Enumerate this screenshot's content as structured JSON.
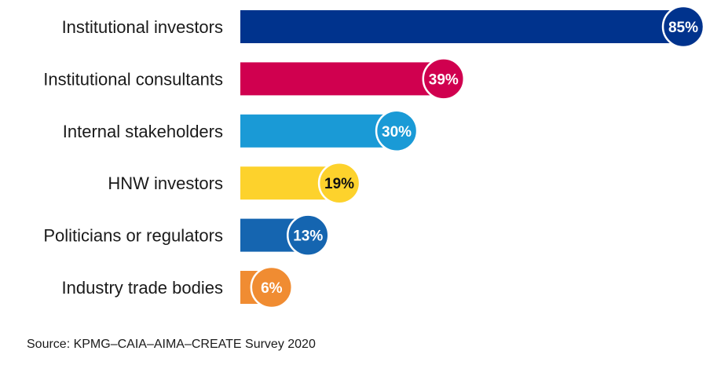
{
  "chart_data": {
    "type": "bar",
    "orientation": "horizontal",
    "categories": [
      "Institutional investors",
      "Institutional consultants",
      "Internal stakeholders",
      "HNW investors",
      "Politicians or regulators",
      "Industry trade bodies"
    ],
    "values": [
      85,
      39,
      30,
      19,
      13,
      6
    ],
    "value_labels": [
      "85%",
      "39%",
      "30%",
      "19%",
      "13%",
      "6%"
    ],
    "colors": [
      "#00338d",
      "#d0004f",
      "#1a9ad6",
      "#fdd22c",
      "#1565b0",
      "#f08c32"
    ],
    "label_text_colors": [
      "#ffffff",
      "#ffffff",
      "#ffffff",
      "#111111",
      "#ffffff",
      "#ffffff"
    ],
    "xlim": [
      0,
      85
    ],
    "title": "",
    "xlabel": "",
    "ylabel": "",
    "grid": false,
    "legend": "none"
  },
  "source": "Source: KPMG–CAIA–AIMA–CREATE Survey 2020"
}
